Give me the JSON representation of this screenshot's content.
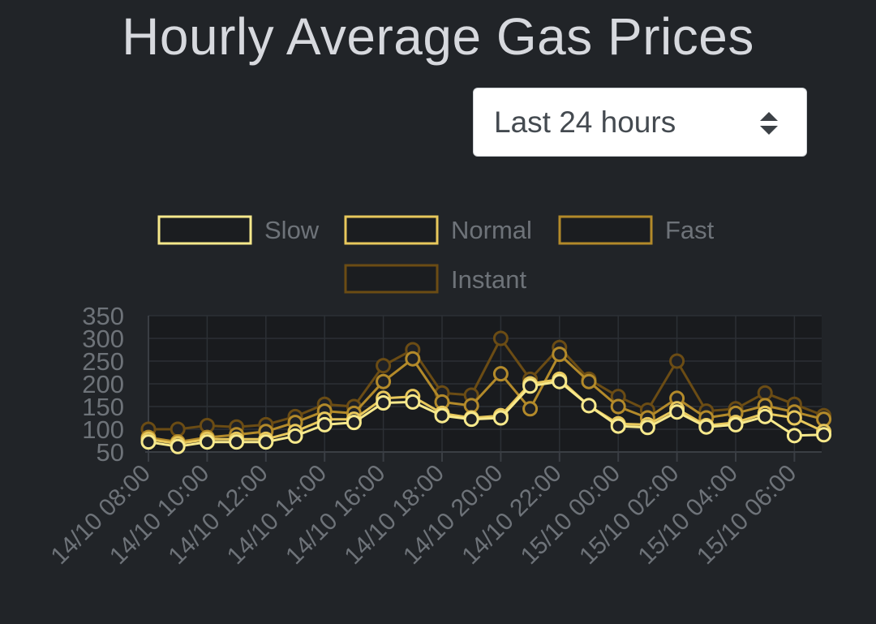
{
  "title": "Hourly Average Gas Prices",
  "range_select": {
    "value": "Last 24 hours",
    "icon": "sort-arrows-icon"
  },
  "chart_data": {
    "type": "line",
    "title": "",
    "xlabel": "",
    "ylabel": "",
    "ylim": [
      50,
      350
    ],
    "yticks": [
      50,
      100,
      150,
      200,
      250,
      300,
      350
    ],
    "grid": true,
    "legend_position": "top",
    "x": [
      "14/10 08:00",
      "14/10 09:00",
      "14/10 10:00",
      "14/10 11:00",
      "14/10 12:00",
      "14/10 13:00",
      "14/10 14:00",
      "14/10 15:00",
      "14/10 16:00",
      "14/10 17:00",
      "14/10 18:00",
      "14/10 19:00",
      "14/10 20:00",
      "14/10 21:00",
      "14/10 22:00",
      "14/10 23:00",
      "15/10 00:00",
      "15/10 01:00",
      "15/10 02:00",
      "15/10 03:00",
      "15/10 04:00",
      "15/10 05:00",
      "15/10 06:00",
      "15/10 07:00"
    ],
    "x_tick_labels": [
      "14/10 08:00",
      "14/10 10:00",
      "14/10 12:00",
      "14/10 14:00",
      "14/10 16:00",
      "14/10 18:00",
      "14/10 20:00",
      "14/10 22:00",
      "15/10 00:00",
      "15/10 02:00",
      "15/10 04:00",
      "15/10 06:00"
    ],
    "series": [
      {
        "name": "Slow",
        "color": "#f7e98c",
        "values": [
          72,
          62,
          72,
          72,
          72,
          85,
          110,
          115,
          158,
          160,
          130,
          122,
          125,
          195,
          205,
          152,
          107,
          104,
          138,
          105,
          110,
          128,
          86,
          88
        ]
      },
      {
        "name": "Normal",
        "color": "#e8c85c",
        "values": [
          78,
          68,
          78,
          78,
          78,
          95,
          122,
          122,
          168,
          172,
          135,
          125,
          130,
          200,
          210,
          152,
          112,
          110,
          145,
          108,
          115,
          135,
          125,
          95
        ]
      },
      {
        "name": "Fast",
        "color": "#b38a2a",
        "values": [
          82,
          72,
          82,
          88,
          95,
          115,
          140,
          135,
          205,
          255,
          160,
          152,
          222,
          145,
          265,
          205,
          150,
          125,
          168,
          125,
          135,
          152,
          138,
          122
        ]
      },
      {
        "name": "Instant",
        "color": "#6b4c14",
        "values": [
          100,
          100,
          108,
          105,
          110,
          128,
          155,
          150,
          240,
          275,
          180,
          175,
          300,
          210,
          280,
          210,
          172,
          142,
          250,
          140,
          145,
          180,
          155,
          130
        ]
      }
    ]
  }
}
